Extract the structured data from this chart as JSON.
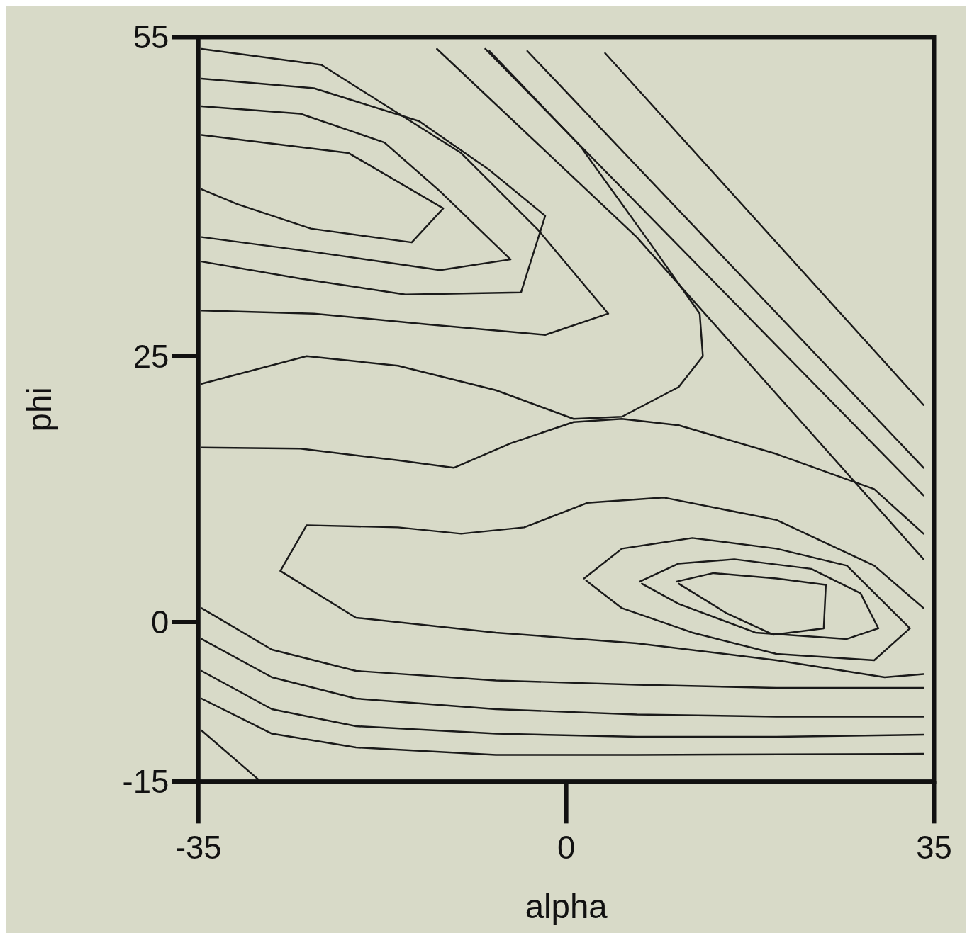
{
  "chart_data": {
    "type": "line",
    "xlabel": "alpha",
    "ylabel": "phi",
    "xlim": [
      -35,
      35
    ],
    "ylim": [
      -15,
      55
    ],
    "xticks": [
      -35,
      0,
      35
    ],
    "yticks": [
      -15,
      0,
      25,
      55
    ],
    "series": [
      {
        "color": "#1a1a1a",
        "x": [
          -34.7,
          -20.7,
          -11.7,
          -14.7,
          -24.3,
          -31.3,
          -34.7
        ],
        "values": [
          45.8,
          44.1,
          38.9,
          35.7,
          37.0,
          39.3,
          40.7
        ]
      },
      {
        "color": "#1a1a1a",
        "x": [
          -34.7,
          -25.3,
          -17.3,
          -12,
          -5.3,
          -12,
          -24,
          -34.7
        ],
        "values": [
          48.5,
          47.8,
          45.1,
          40.5,
          34.1,
          33.1,
          34.8,
          36.2
        ]
      },
      {
        "color": "#1a1a1a",
        "x": [
          -34.7,
          -24,
          -14,
          -7.3,
          -2,
          -4.3,
          -15.3,
          -25.3,
          -34.7
        ],
        "values": [
          51.1,
          50.2,
          47.1,
          42.5,
          38.2,
          31.0,
          30.8,
          32.3,
          33.9
        ]
      },
      {
        "color": "#1a1a1a",
        "x": [
          -34.7,
          -23.3,
          -10,
          -2.7,
          4,
          -2,
          -13.3,
          -24,
          -34.7
        ],
        "values": [
          53.9,
          52.4,
          44.1,
          36.9,
          29.0,
          27.0,
          28.0,
          29.0,
          29.3
        ]
      },
      {
        "color": "#1a1a1a",
        "x": [
          -34.7,
          -24.7,
          -16,
          -6.7,
          0.7,
          5.3,
          10.7,
          13,
          12.7,
          8,
          1.3,
          -7.3
        ],
        "values": [
          22.4,
          25.0,
          24.1,
          21.8,
          19.1,
          19.3,
          22.1,
          25.0,
          29.0,
          35.6,
          44.8,
          53.7
        ]
      },
      {
        "color": "#1a1a1a",
        "x": [
          -34.7,
          -25.3,
          -16,
          -10.7,
          -5.3,
          0.7,
          5.3,
          10.7,
          20,
          29.3,
          34
        ],
        "values": [
          16.4,
          16.3,
          15.2,
          14.5,
          16.8,
          18.8,
          19.1,
          18.5,
          15.8,
          12.5,
          8.3
        ]
      },
      {
        "color": "#1a1a1a",
        "x": [
          34,
          29.3,
          20,
          9.3,
          2,
          -4,
          -10,
          -16,
          -24.7,
          -27.2,
          -20,
          -6.7,
          6.7,
          20,
          30.3,
          34
        ],
        "values": [
          1.3,
          5.3,
          9.6,
          11.7,
          11.2,
          8.9,
          8.3,
          8.9,
          9.1,
          4.8,
          0.4,
          -1.0,
          -2.0,
          -3.6,
          -5.2,
          -4.9
        ]
      },
      {
        "color": "#1a1a1a",
        "x": [
          1.7,
          5.3,
          12,
          20,
          26.7,
          32.7,
          29.3,
          20,
          12,
          5.3,
          1.9
        ],
        "values": [
          4.1,
          6.9,
          7.9,
          6.9,
          5.3,
          -0.6,
          -3.6,
          -3.0,
          -1.0,
          1.3,
          3.9
        ]
      },
      {
        "color": "#1a1a1a",
        "x": [
          7,
          10.7,
          16,
          23.3,
          28,
          29.7,
          26.7,
          18,
          10.7,
          7.2
        ],
        "values": [
          3.8,
          5.5,
          5.9,
          5.0,
          2.7,
          -0.6,
          -1.6,
          -1.0,
          1.7,
          3.6
        ]
      },
      {
        "color": "#1a1a1a",
        "x": [
          10.5,
          14,
          20,
          24.7,
          24.5,
          19.7,
          15.3,
          10.7
        ],
        "values": [
          3.8,
          4.6,
          4.1,
          3.5,
          -0.6,
          -1.2,
          0.8,
          3.6
        ]
      },
      {
        "color": "#1a1a1a",
        "x": [
          -34.7,
          -28,
          -20,
          -6.7,
          6.7,
          20,
          34
        ],
        "values": [
          1.3,
          -2.6,
          -4.6,
          -5.5,
          -5.9,
          -6.2,
          -6.2
        ]
      },
      {
        "color": "#1a1a1a",
        "x": [
          -34.7,
          -28,
          -20,
          -6.7,
          6.7,
          20,
          34
        ],
        "values": [
          -1.6,
          -5.2,
          -7.2,
          -8.2,
          -8.7,
          -8.9,
          -8.9
        ]
      },
      {
        "color": "#1a1a1a",
        "x": [
          -34.7,
          -28,
          -20,
          -6.7,
          6.7,
          20,
          34
        ],
        "values": [
          -4.6,
          -8.2,
          -9.8,
          -10.5,
          -10.8,
          -10.8,
          -10.6
        ]
      },
      {
        "color": "#1a1a1a",
        "x": [
          -34.7,
          -28,
          -20,
          -6.7,
          6.7,
          34
        ],
        "values": [
          -7.2,
          -10.5,
          -11.8,
          -12.5,
          -12.5,
          -12.4
        ]
      },
      {
        "color": "#1a1a1a",
        "x": [
          -34.7,
          -29.3
        ],
        "values": [
          -10.2,
          -14.8
        ]
      },
      {
        "color": "#1a1a1a",
        "x": [
          3.7,
          34
        ],
        "values": [
          53.5,
          20.4
        ]
      },
      {
        "color": "#1a1a1a",
        "x": [
          -3.7,
          34
        ],
        "values": [
          53.7,
          14.5
        ]
      },
      {
        "color": "#1a1a1a",
        "x": [
          -7.7,
          34
        ],
        "values": [
          53.9,
          11.9
        ]
      },
      {
        "color": "#1a1a1a",
        "x": [
          -12.3,
          6.7,
          34
        ],
        "values": [
          53.9,
          36.2,
          5.9
        ]
      }
    ]
  }
}
